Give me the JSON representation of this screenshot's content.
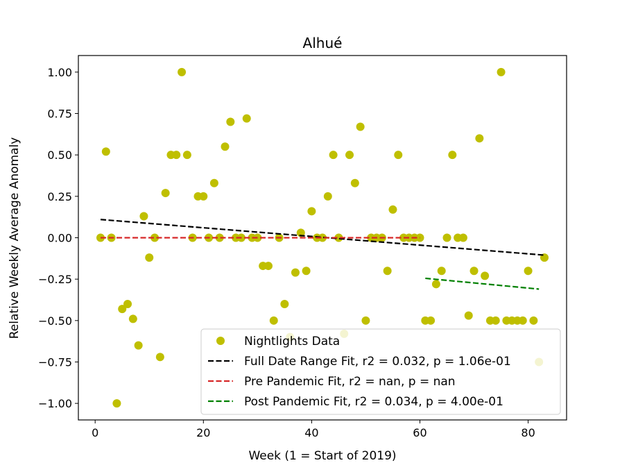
{
  "chart_data": {
    "type": "scatter",
    "title": "Alhué",
    "xlabel": "Week (1 = Start of 2019)",
    "ylabel": "Relative Weekly Average Anomaly",
    "xlim": [
      -3.1,
      87.1
    ],
    "ylim": [
      -1.1,
      1.1
    ],
    "xticks": [
      0,
      20,
      40,
      60,
      80
    ],
    "yticks": [
      -1.0,
      -0.75,
      -0.5,
      -0.25,
      0.0,
      0.25,
      0.5,
      0.75,
      1.0
    ],
    "xtick_labels": [
      "0",
      "20",
      "40",
      "60",
      "80"
    ],
    "ytick_labels": [
      "−1.00",
      "−0.75",
      "−0.50",
      "−0.25",
      "0.00",
      "0.25",
      "0.50",
      "0.75",
      "1.00"
    ],
    "grid": false,
    "legend_position": "lower-right",
    "series": [
      {
        "name": "Nightlights Data",
        "kind": "scatter",
        "color": "#bfbf00",
        "x": [
          1,
          2,
          3,
          4,
          5,
          6,
          7,
          8,
          9,
          10,
          11,
          12,
          13,
          14,
          15,
          16,
          17,
          18,
          19,
          20,
          21,
          22,
          23,
          24,
          25,
          26,
          27,
          28,
          29,
          30,
          31,
          32,
          33,
          34,
          35,
          36,
          37,
          38,
          39,
          40,
          41,
          42,
          43,
          44,
          45,
          46,
          47,
          48,
          49,
          50,
          51,
          52,
          53,
          54,
          55,
          56,
          57,
          58,
          59,
          60,
          61,
          62,
          63,
          64,
          65,
          66,
          67,
          68,
          69,
          70,
          71,
          72,
          73,
          74,
          75,
          76,
          77,
          78,
          79,
          80,
          81,
          82,
          83
        ],
        "y": [
          0.0,
          0.52,
          0.0,
          -1.0,
          -0.43,
          -0.4,
          -0.49,
          -0.65,
          0.13,
          -0.12,
          0.0,
          -0.72,
          0.27,
          0.5,
          0.5,
          1.0,
          0.5,
          0.0,
          0.25,
          0.25,
          0.0,
          0.33,
          0.0,
          0.55,
          0.7,
          0.0,
          0.0,
          0.72,
          0.0,
          0.0,
          -0.17,
          -0.17,
          -0.5,
          0.0,
          -0.4,
          -0.6,
          -0.21,
          0.03,
          -0.2,
          0.16,
          0.0,
          0.0,
          0.25,
          0.5,
          0.0,
          -0.58,
          0.5,
          0.33,
          0.67,
          -0.5,
          0.0,
          0.0,
          0.0,
          -0.2,
          0.17,
          0.5,
          0.0,
          0.0,
          0.0,
          0.0,
          -0.5,
          -0.5,
          -0.28,
          -0.2,
          0.0,
          0.5,
          0.0,
          0.0,
          -0.47,
          -0.2,
          0.6,
          -0.23,
          -0.5,
          -0.5,
          1.0,
          -0.5,
          -0.5,
          -0.5,
          -0.5,
          -0.2,
          -0.5,
          -0.75,
          -0.12
        ]
      },
      {
        "name": "Full Date Range Fit, r2 = 0.032, p = 1.06e-01",
        "kind": "line",
        "style": "dashed",
        "color": "#000000",
        "x": [
          1,
          83
        ],
        "y": [
          0.11,
          -0.105
        ]
      },
      {
        "name": "Pre Pandemic Fit, r2 = nan, p = nan",
        "kind": "line",
        "style": "dashed",
        "color": "#d62728",
        "x": [
          1,
          60
        ],
        "y": [
          0.0,
          0.0
        ]
      },
      {
        "name": "Post Pandemic Fit, r2 = 0.034, p = 4.00e-01",
        "kind": "line",
        "style": "dashed",
        "color": "#008000",
        "x": [
          61,
          82
        ],
        "y": [
          -0.245,
          -0.31
        ]
      }
    ]
  }
}
